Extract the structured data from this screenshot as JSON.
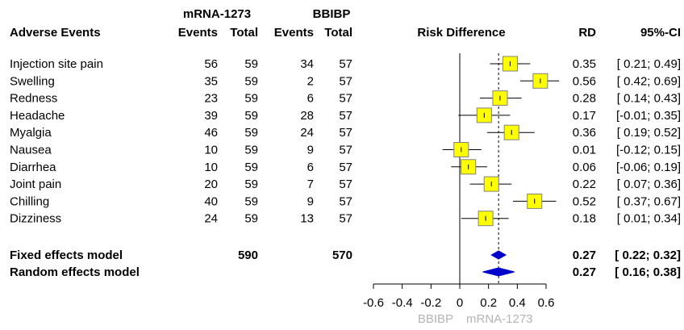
{
  "chart_data": {
    "type": "forest",
    "headers": {
      "group1": "mRNA-1273",
      "group2": "BBIBP",
      "label_col": "Adverse Events",
      "events": "Events",
      "total": "Total",
      "plot": "Risk Difference",
      "rd": "RD",
      "ci": "95%-CI"
    },
    "rows": [
      {
        "label": "Injection site pain",
        "e1": "56",
        "n1": "59",
        "e2": "34",
        "n2": "57",
        "rd": 0.35,
        "lo": 0.21,
        "hi": 0.49,
        "rd_text": "0.35",
        "ci_text": "[ 0.21; 0.49]"
      },
      {
        "label": "Swelling",
        "e1": "35",
        "n1": "59",
        "e2": "2",
        "n2": "57",
        "rd": 0.56,
        "lo": 0.42,
        "hi": 0.69,
        "rd_text": "0.56",
        "ci_text": "[ 0.42; 0.69]"
      },
      {
        "label": "Redness",
        "e1": "23",
        "n1": "59",
        "e2": "6",
        "n2": "57",
        "rd": 0.28,
        "lo": 0.14,
        "hi": 0.43,
        "rd_text": "0.28",
        "ci_text": "[ 0.14; 0.43]"
      },
      {
        "label": "Headache",
        "e1": "39",
        "n1": "59",
        "e2": "28",
        "n2": "57",
        "rd": 0.17,
        "lo": -0.01,
        "hi": 0.35,
        "rd_text": "0.17",
        "ci_text": "[-0.01; 0.35]"
      },
      {
        "label": "Myalgia",
        "e1": "46",
        "n1": "59",
        "e2": "24",
        "n2": "57",
        "rd": 0.36,
        "lo": 0.19,
        "hi": 0.52,
        "rd_text": "0.36",
        "ci_text": "[ 0.19; 0.52]"
      },
      {
        "label": "Nausea",
        "e1": "10",
        "n1": "59",
        "e2": "9",
        "n2": "57",
        "rd": 0.01,
        "lo": -0.12,
        "hi": 0.15,
        "rd_text": "0.01",
        "ci_text": "[-0.12; 0.15]"
      },
      {
        "label": "Diarrhea",
        "e1": "10",
        "n1": "59",
        "e2": "6",
        "n2": "57",
        "rd": 0.06,
        "lo": -0.06,
        "hi": 0.19,
        "rd_text": "0.06",
        "ci_text": "[-0.06; 0.19]"
      },
      {
        "label": "Joint pain",
        "e1": "20",
        "n1": "59",
        "e2": "7",
        "n2": "57",
        "rd": 0.22,
        "lo": 0.07,
        "hi": 0.36,
        "rd_text": "0.22",
        "ci_text": "[ 0.07; 0.36]"
      },
      {
        "label": "Chilling",
        "e1": "40",
        "n1": "59",
        "e2": "9",
        "n2": "57",
        "rd": 0.52,
        "lo": 0.37,
        "hi": 0.67,
        "rd_text": "0.52",
        "ci_text": "[ 0.37; 0.67]"
      },
      {
        "label": "Dizziness",
        "e1": "24",
        "n1": "59",
        "e2": "13",
        "n2": "57",
        "rd": 0.18,
        "lo": 0.01,
        "hi": 0.34,
        "rd_text": "0.18",
        "ci_text": "[ 0.01; 0.34]"
      }
    ],
    "summary": [
      {
        "label": "Fixed effects model",
        "n1": "590",
        "n2": "570",
        "rd": 0.27,
        "lo": 0.22,
        "hi": 0.32,
        "rd_text": "0.27",
        "ci_text": "[ 0.22; 0.32]"
      },
      {
        "label": "Random effects model",
        "n1": "",
        "n2": "",
        "rd": 0.27,
        "lo": 0.16,
        "hi": 0.38,
        "rd_text": "0.27",
        "ci_text": "[ 0.16; 0.38]"
      }
    ],
    "x_axis": {
      "range": [
        -0.6,
        0.6
      ],
      "ticks": [
        -0.6,
        -0.4,
        -0.2,
        0,
        0.2,
        0.4,
        0.6
      ],
      "tick_labels": [
        "-0.6",
        "-0.4",
        "-0.2",
        "0",
        "0.2",
        "0.4",
        "0.6"
      ]
    },
    "favours_left": "BBIBP",
    "favours_right": "mRNA-1273",
    "colors": {
      "box_fill": "#ffff00",
      "box_stroke": "#808080",
      "diamond": "#0000cc",
      "favours_text": "#b4b4b4",
      "lines": "#000000"
    }
  }
}
